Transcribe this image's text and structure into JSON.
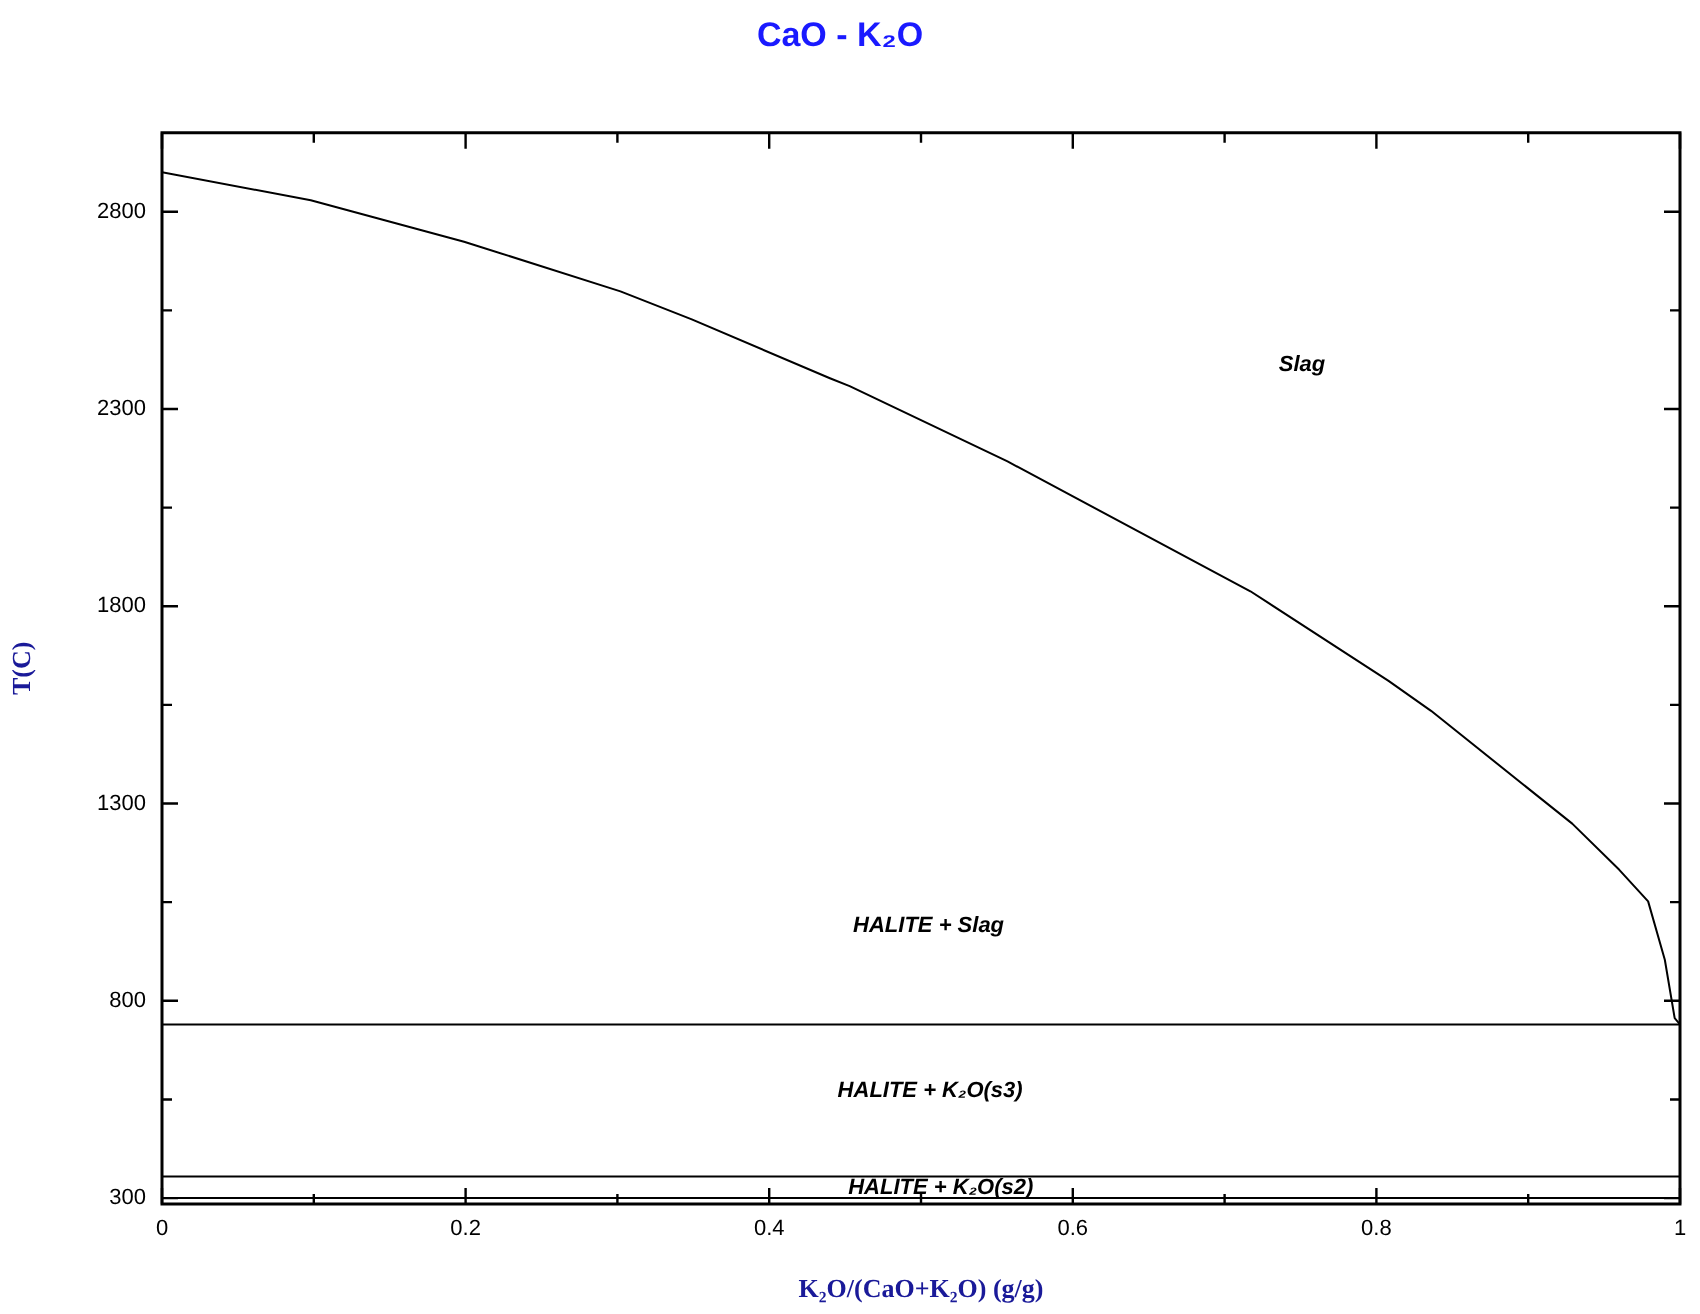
{
  "chart_data": {
    "type": "line",
    "title": "CaO - K₂O",
    "xlabel": "K₂O/(CaO+K₂O) (g/g)",
    "ylabel": "T(C)",
    "xlim": [
      0,
      1
    ],
    "ylim": [
      285,
      3000
    ],
    "xticks": [
      0,
      {
        "value": 0.1,
        "label": null
      },
      0.2,
      {
        "value": 0.3,
        "label": null
      },
      0.4,
      {
        "value": 0.5,
        "label": null
      },
      0.6,
      {
        "value": 0.7,
        "label": null
      },
      0.8,
      {
        "value": 0.9,
        "label": null
      },
      1
    ],
    "yticks": [
      300,
      {
        "value": 550,
        "label": null
      },
      800,
      {
        "value": 1050,
        "label": null
      },
      1300,
      {
        "value": 1550,
        "label": null
      },
      1800,
      {
        "value": 2050,
        "label": null
      },
      2300,
      {
        "value": 2550,
        "label": null
      },
      2800
    ],
    "grid": false,
    "legend": false,
    "marker": "none",
    "line_style": "solid",
    "series": [
      {
        "color": "#000000",
        "x": [
          0,
          0.098,
          0.199,
          0.302,
          0.349,
          0.44,
          0.453,
          0.557,
          0.717,
          0.808,
          0.836,
          0.929,
          0.96,
          0.979,
          0.99,
          0.9965,
          1
        ],
        "values": [
          2900,
          2829,
          2724,
          2598,
          2527,
          2378,
          2358,
          2167,
          1838,
          1611,
          1535,
          1249,
          1132,
          1052,
          904,
          756,
          740
        ]
      },
      {
        "color": "#000000",
        "x": [
          0,
          1
        ],
        "values": [
          740,
          740
        ]
      },
      {
        "color": "#000000",
        "x": [
          0,
          1
        ],
        "values": [
          355,
          355
        ]
      },
      {
        "color": "#000000",
        "x": [
          0,
          1
        ],
        "values": [
          300,
          300
        ]
      }
    ],
    "annotations": [
      "Slag",
      "HALITE + Slag",
      "HALITE + K₂O(s3)",
      "HALITE + K₂O(s2)"
    ]
  }
}
